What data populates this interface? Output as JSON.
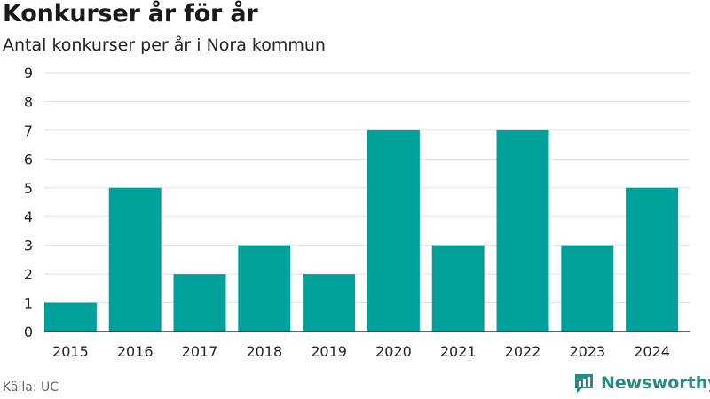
{
  "title": "Konkurser år för år",
  "subtitle": "Antal konkurser per år i Nora kommun",
  "source": "Källa: UC",
  "brand": {
    "name": "Newsworthy",
    "color": "#2a8a7e"
  },
  "chart_data": {
    "type": "bar",
    "categories": [
      "2015",
      "2016",
      "2017",
      "2018",
      "2019",
      "2020",
      "2021",
      "2022",
      "2023",
      "2024"
    ],
    "values": [
      1,
      5,
      2,
      3,
      2,
      7,
      3,
      7,
      3,
      5
    ],
    "ylim": [
      0,
      9
    ],
    "yticks": [
      0,
      1,
      2,
      3,
      4,
      5,
      6,
      7,
      8,
      9
    ],
    "grid": true,
    "bar_color": "#00a19a"
  }
}
